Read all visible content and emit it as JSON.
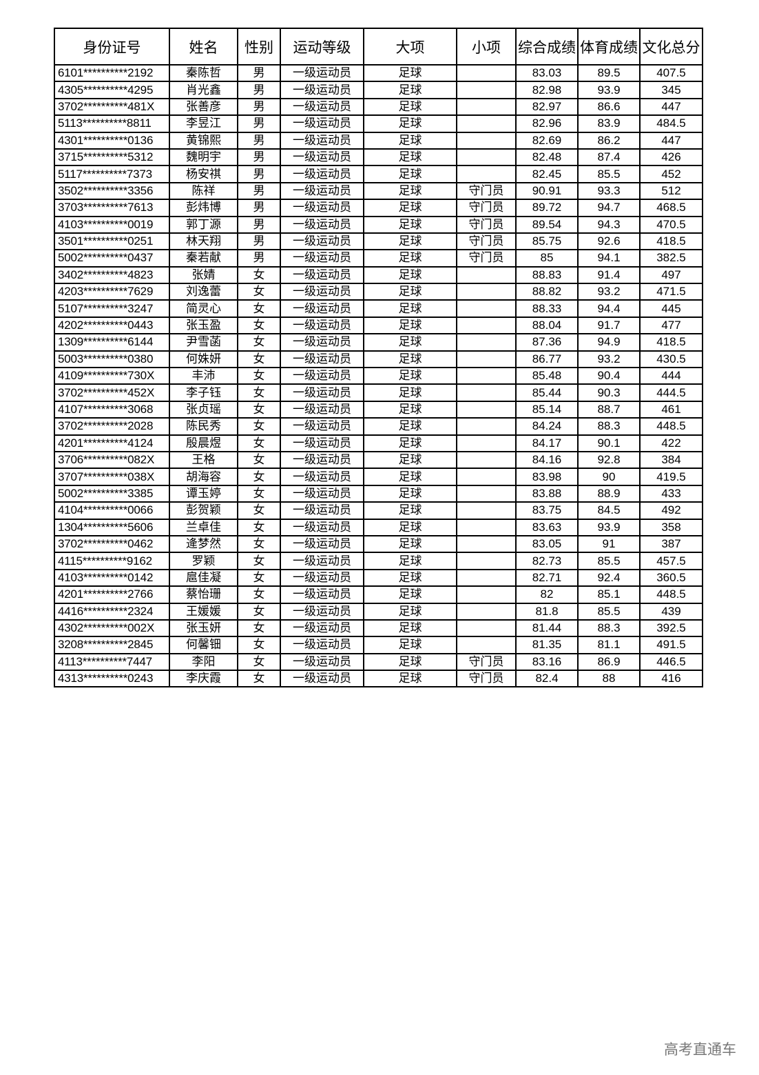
{
  "table": {
    "headers": [
      "身份证号",
      "姓名",
      "性别",
      "运动等级",
      "大项",
      "小项",
      "综合成绩",
      "体育成绩",
      "文化总分"
    ],
    "rows": [
      [
        "6101**********2192",
        "秦陈哲",
        "男",
        "一级运动员",
        "足球",
        "",
        "83.03",
        "89.5",
        "407.5"
      ],
      [
        "4305**********4295",
        "肖光鑫",
        "男",
        "一级运动员",
        "足球",
        "",
        "82.98",
        "93.9",
        "345"
      ],
      [
        "3702**********481X",
        "张善彦",
        "男",
        "一级运动员",
        "足球",
        "",
        "82.97",
        "86.6",
        "447"
      ],
      [
        "5113**********8811",
        "李昱江",
        "男",
        "一级运动员",
        "足球",
        "",
        "82.96",
        "83.9",
        "484.5"
      ],
      [
        "4301**********0136",
        "黄锦熙",
        "男",
        "一级运动员",
        "足球",
        "",
        "82.69",
        "86.2",
        "447"
      ],
      [
        "3715**********5312",
        "魏明宇",
        "男",
        "一级运动员",
        "足球",
        "",
        "82.48",
        "87.4",
        "426"
      ],
      [
        "5117**********7373",
        "杨安祺",
        "男",
        "一级运动员",
        "足球",
        "",
        "82.45",
        "85.5",
        "452"
      ],
      [
        "3502**********3356",
        "陈祥",
        "男",
        "一级运动员",
        "足球",
        "守门员",
        "90.91",
        "93.3",
        "512"
      ],
      [
        "3703**********7613",
        "彭炜博",
        "男",
        "一级运动员",
        "足球",
        "守门员",
        "89.72",
        "94.7",
        "468.5"
      ],
      [
        "4103**********0019",
        "郭丁源",
        "男",
        "一级运动员",
        "足球",
        "守门员",
        "89.54",
        "94.3",
        "470.5"
      ],
      [
        "3501**********0251",
        "林天翔",
        "男",
        "一级运动员",
        "足球",
        "守门员",
        "85.75",
        "92.6",
        "418.5"
      ],
      [
        "5002**********0437",
        "秦若献",
        "男",
        "一级运动员",
        "足球",
        "守门员",
        "85",
        "94.1",
        "382.5"
      ],
      [
        "3402**********4823",
        "张婧",
        "女",
        "一级运动员",
        "足球",
        "",
        "88.83",
        "91.4",
        "497"
      ],
      [
        "4203**********7629",
        "刘逸蕾",
        "女",
        "一级运动员",
        "足球",
        "",
        "88.82",
        "93.2",
        "471.5"
      ],
      [
        "5107**********3247",
        "简灵心",
        "女",
        "一级运动员",
        "足球",
        "",
        "88.33",
        "94.4",
        "445"
      ],
      [
        "4202**********0443",
        "张玉盈",
        "女",
        "一级运动员",
        "足球",
        "",
        "88.04",
        "91.7",
        "477"
      ],
      [
        "1309**********6144",
        "尹雪菡",
        "女",
        "一级运动员",
        "足球",
        "",
        "87.36",
        "94.9",
        "418.5"
      ],
      [
        "5003**********0380",
        "何姝妍",
        "女",
        "一级运动员",
        "足球",
        "",
        "86.77",
        "93.2",
        "430.5"
      ],
      [
        "4109**********730X",
        "丰沛",
        "女",
        "一级运动员",
        "足球",
        "",
        "85.48",
        "90.4",
        "444"
      ],
      [
        "3702**********452X",
        "李子钰",
        "女",
        "一级运动员",
        "足球",
        "",
        "85.44",
        "90.3",
        "444.5"
      ],
      [
        "4107**********3068",
        "张贞瑶",
        "女",
        "一级运动员",
        "足球",
        "",
        "85.14",
        "88.7",
        "461"
      ],
      [
        "3702**********2028",
        "陈民秀",
        "女",
        "一级运动员",
        "足球",
        "",
        "84.24",
        "88.3",
        "448.5"
      ],
      [
        "4201**********4124",
        "殷晨煜",
        "女",
        "一级运动员",
        "足球",
        "",
        "84.17",
        "90.1",
        "422"
      ],
      [
        "3706**********082X",
        "王格",
        "女",
        "一级运动员",
        "足球",
        "",
        "84.16",
        "92.8",
        "384"
      ],
      [
        "3707**********038X",
        "胡海容",
        "女",
        "一级运动员",
        "足球",
        "",
        "83.98",
        "90",
        "419.5"
      ],
      [
        "5002**********3385",
        "谭玉婷",
        "女",
        "一级运动员",
        "足球",
        "",
        "83.88",
        "88.9",
        "433"
      ],
      [
        "4104**********0066",
        "彭贺颖",
        "女",
        "一级运动员",
        "足球",
        "",
        "83.75",
        "84.5",
        "492"
      ],
      [
        "1304**********5606",
        "兰卓佳",
        "女",
        "一级运动员",
        "足球",
        "",
        "83.63",
        "93.9",
        "358"
      ],
      [
        "3702**********0462",
        "逄梦然",
        "女",
        "一级运动员",
        "足球",
        "",
        "83.05",
        "91",
        "387"
      ],
      [
        "4115**********9162",
        "罗颖",
        "女",
        "一级运动员",
        "足球",
        "",
        "82.73",
        "85.5",
        "457.5"
      ],
      [
        "4103**********0142",
        "扈佳凝",
        "女",
        "一级运动员",
        "足球",
        "",
        "82.71",
        "92.4",
        "360.5"
      ],
      [
        "4201**********2766",
        "蔡怡珊",
        "女",
        "一级运动员",
        "足球",
        "",
        "82",
        "85.1",
        "448.5"
      ],
      [
        "4416**********2324",
        "王媛媛",
        "女",
        "一级运动员",
        "足球",
        "",
        "81.8",
        "85.5",
        "439"
      ],
      [
        "4302**********002X",
        "张玉妍",
        "女",
        "一级运动员",
        "足球",
        "",
        "81.44",
        "88.3",
        "392.5"
      ],
      [
        "3208**********2845",
        "何馨钿",
        "女",
        "一级运动员",
        "足球",
        "",
        "81.35",
        "81.1",
        "491.5"
      ],
      [
        "4113**********7447",
        "李阳",
        "女",
        "一级运动员",
        "足球",
        "守门员",
        "83.16",
        "86.9",
        "446.5"
      ],
      [
        "4313**********0243",
        "李庆霞",
        "女",
        "一级运动员",
        "足球",
        "守门员",
        "82.4",
        "88",
        "416"
      ]
    ]
  },
  "watermark": "高考直通车"
}
